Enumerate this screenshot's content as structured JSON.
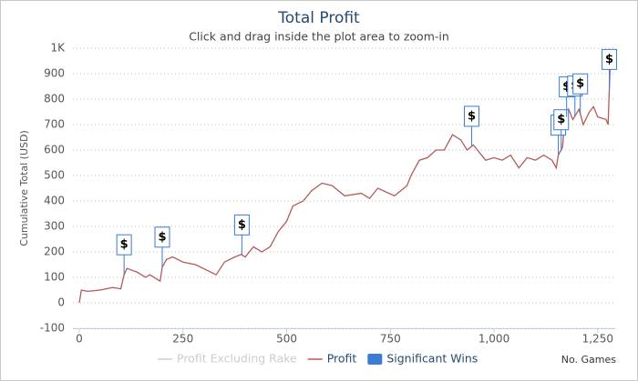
{
  "chart_data": {
    "type": "line",
    "title": "Total Profit",
    "subtitle": "Click and drag inside the plot area to zoom-in",
    "y_label": "Cumulative Total (USD)",
    "x_label": "No. Games",
    "xlim": [
      0,
      1290
    ],
    "xticks": [
      0,
      250,
      500,
      750,
      {
        "value": 1000,
        "label": "1,000"
      },
      {
        "value": 1250,
        "label": "1,250"
      }
    ],
    "ylim": [
      -100,
      1000
    ],
    "yticks": [
      -100,
      0,
      100,
      200,
      300,
      400,
      500,
      600,
      700,
      800,
      900,
      {
        "value": 1000,
        "label": "1K"
      }
    ],
    "grid": true,
    "series": [
      {
        "name": "Profit Excluding Rake",
        "color": "#cccccc",
        "visible": false
      },
      {
        "name": "Profit",
        "color": "#b55a57",
        "x": [
          0,
          5,
          20,
          50,
          80,
          100,
          108,
          115,
          140,
          160,
          170,
          195,
          200,
          210,
          225,
          250,
          280,
          330,
          350,
          375,
          390,
          400,
          420,
          440,
          460,
          480,
          500,
          515,
          540,
          560,
          585,
          610,
          640,
          680,
          700,
          720,
          760,
          790,
          800,
          820,
          840,
          860,
          880,
          900,
          920,
          935,
          950,
          960,
          980,
          1000,
          1020,
          1040,
          1060,
          1080,
          1100,
          1120,
          1140,
          1150,
          1155,
          1165,
          1170,
          1180,
          1190,
          1205,
          1215,
          1230,
          1240,
          1250,
          1270,
          1275,
          1280
        ],
        "values": [
          0,
          50,
          45,
          50,
          60,
          55,
          110,
          135,
          120,
          100,
          110,
          85,
          140,
          170,
          180,
          160,
          150,
          110,
          160,
          180,
          190,
          180,
          220,
          200,
          220,
          280,
          320,
          380,
          400,
          440,
          470,
          460,
          420,
          430,
          410,
          450,
          420,
          460,
          500,
          560,
          570,
          600,
          600,
          660,
          640,
          600,
          620,
          600,
          560,
          570,
          560,
          580,
          530,
          570,
          560,
          580,
          560,
          530,
          580,
          610,
          700,
          760,
          720,
          760,
          700,
          750,
          770,
          730,
          720,
          700,
          930
        ]
      },
      {
        "name": "Significant Wins",
        "type": "flags",
        "color": "#3a7bd5",
        "text": "$",
        "x": [
          108,
          200,
          392,
          946,
          1155,
          1162,
          1175,
          1195,
          1208,
          1278
        ]
      }
    ]
  }
}
